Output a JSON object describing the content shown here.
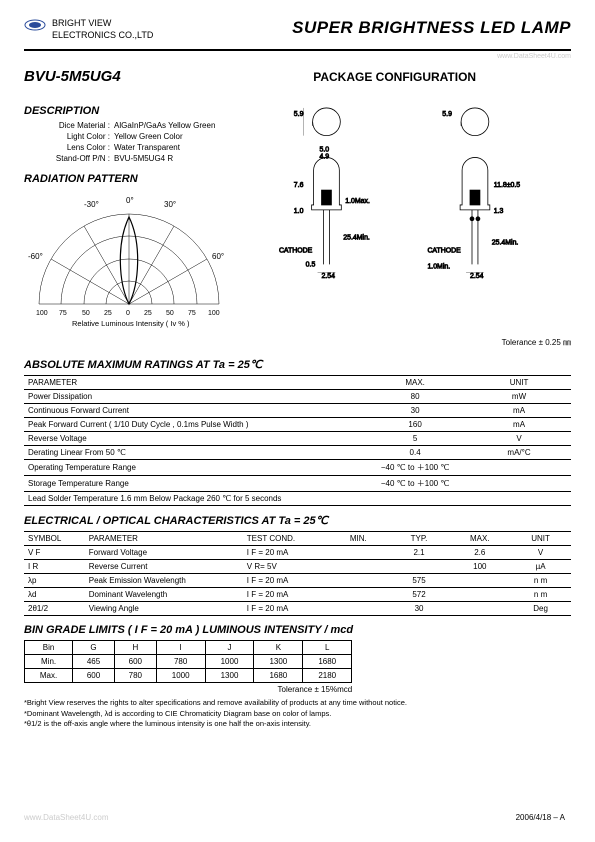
{
  "company": {
    "line1": "BRIGHT VIEW",
    "line2": "ELECTRONICS CO.,LTD"
  },
  "page_title": "SUPER BRIGHTNESS LED LAMP",
  "watermark": "www.DataSheet4U.com",
  "part_number": "BVU-5M5UG4",
  "package_conf_label": "PACKAGE CONFIGURATION",
  "description_h": "DESCRIPTION",
  "description": [
    {
      "label": "Dice Material :",
      "value": "AlGaInP/GaAs Yellow Green"
    },
    {
      "label": "Light Color :",
      "value": "Yellow Green Color"
    },
    {
      "label": "Lens Color :",
      "value": "Water Transparent"
    },
    {
      "label": "Stand-Off  P/N :",
      "value": "BVU-5M5UG4 R"
    }
  ],
  "radiation_h": "RADIATION  PATTERN",
  "radiation": {
    "angles": [
      "-30°",
      "0°",
      "30°",
      "-60°",
      "60°"
    ],
    "x_label": "Relative Luminous Intensity  ( Iv % )",
    "x_ticks": [
      "100",
      "75",
      "50",
      "25",
      "0",
      "25",
      "50",
      "75",
      "100"
    ]
  },
  "pkg_dims": {
    "top_diam": "5.9",
    "body_w": "5.0",
    "inner_w": "4.9",
    "dome_h": "7.6",
    "flange": "1.0",
    "flange_max": "1.0Max.",
    "lead_len": "25.4Min.",
    "lead_sp": "2.54",
    "cathode_w": "0.5",
    "cathode_label": "CATHODE",
    "overall_h": "11.8±0.5",
    "flange_off": "1.3",
    "lead_min": "1.0Min."
  },
  "tolerance_note": "Tolerance  ± 0.25 ㎜",
  "amr_h": "ABSOLUTE  MAXIMUM  RATINGS  AT  Ta = 25℃",
  "amr": {
    "head": [
      "PARAMETER",
      "MAX.",
      "UNIT"
    ],
    "rows": [
      [
        "Power  Dissipation",
        "80",
        "mW"
      ],
      [
        "Continuous  Forward  Current",
        "30",
        "mA"
      ],
      [
        "Peak  Forward  Current  ( 1/10 Duty  Cycle , 0.1ms  Pulse  Width  )",
        "160",
        "mA"
      ],
      [
        "Reverse  Voltage",
        "5",
        "V"
      ],
      [
        "Derating  Linear  From  50 ℃",
        "0.4",
        "mA/°C"
      ],
      [
        "Operating  Temperature  Range",
        "−40 ℃  to  ＋100 ℃",
        ""
      ],
      [
        "Storage  Temperature  Range",
        "−40 ℃  to  ＋100 ℃",
        ""
      ],
      [
        "Lead  Solder  Temperature  1.6 mm  Below  Package  260 ℃  for  5  seconds",
        "",
        ""
      ]
    ]
  },
  "eoc_h": "ELECTRICAL / OPTICAL  CHARACTERISTICS  AT  Ta = 25℃",
  "eoc": {
    "head": [
      "SYMBOL",
      "PARAMETER",
      "TEST COND.",
      "MIN.",
      "TYP.",
      "MAX.",
      "UNIT"
    ],
    "rows": [
      [
        "V F",
        "Forward  Voltage",
        "I F = 20 mA",
        "",
        "2.1",
        "2.6",
        "V"
      ],
      [
        "I R",
        "Reverse  Current",
        "V R= 5V",
        "",
        "",
        "100",
        "µA"
      ],
      [
        "λp",
        "Peak Emission Wavelength",
        "I F = 20 mA",
        "",
        "575",
        "",
        "n m"
      ],
      [
        "λd",
        "Dominant  Wavelength",
        "I F = 20 mA",
        "",
        "572",
        "",
        "n m"
      ],
      [
        "2θ1/2",
        "Viewing  Angle",
        "I F = 20 mA",
        "",
        "30",
        "",
        "Deg"
      ]
    ]
  },
  "bin_h": "BIN  GRADE  LIMITS  ( I F = 20 mA ) LUMINOUS INTENSITY / mcd",
  "bin": {
    "head": [
      "Bin",
      "G",
      "H",
      "I",
      "J",
      "K",
      "L"
    ],
    "rows": [
      [
        "Min.",
        "465",
        "600",
        "780",
        "1000",
        "1300",
        "1680"
      ],
      [
        "Max.",
        "600",
        "780",
        "1000",
        "1300",
        "1680",
        "2180"
      ]
    ],
    "tol": "Tolerance  ± 15%mcd"
  },
  "notes": [
    "*Bright View reserves the rights to alter specifications and remove availability of products at any time without notice.",
    "*Dominant  Wavelength,  λd  is according to CIE Chromaticity Diagram base on color of lamps.",
    "*θ1/2 is the  off-axis angle where the luminous intensity is one  half  the on-axis  intensity."
  ],
  "footer_date": "2006/4/18  – A",
  "colors": {
    "text": "#000000",
    "grid": "#000000",
    "logo_blue": "#2a4b9b"
  }
}
